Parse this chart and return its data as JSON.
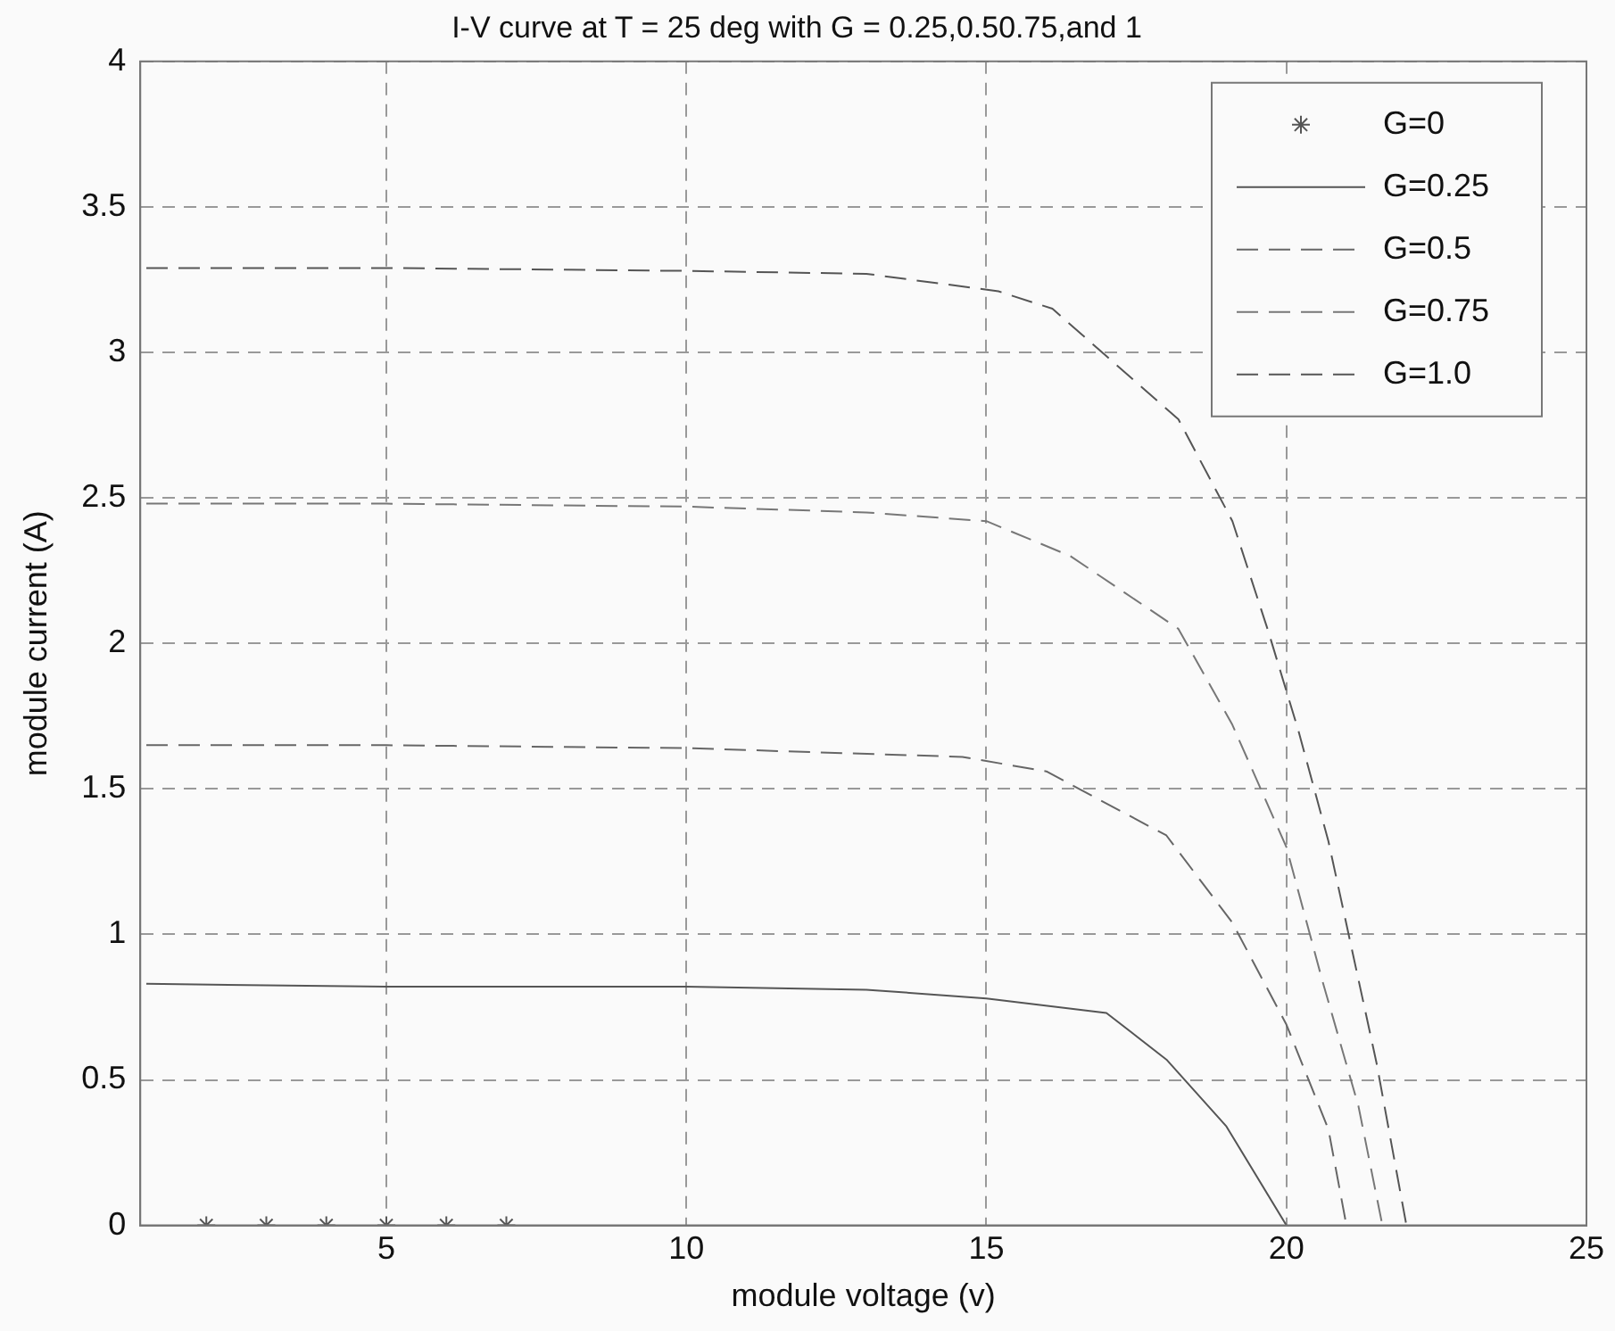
{
  "chart_data": {
    "type": "line",
    "title": "I-V curve at T = 25 deg with G = 0.25,0.50.75,and 1",
    "xlabel": "module voltage (v)",
    "ylabel": "module current (A)",
    "xlim": [
      0.9,
      25
    ],
    "xticks": [
      5,
      10,
      15,
      20,
      25
    ],
    "ylim": [
      0,
      4
    ],
    "yticks": [
      0,
      0.5,
      1,
      1.5,
      2,
      2.5,
      3,
      3.5,
      4
    ],
    "grid": true,
    "legend": "top right",
    "series": [
      {
        "name": "G=0",
        "type": "scatter",
        "marker": "cross",
        "color": "#555555",
        "x": [
          2,
          3,
          4,
          5,
          6,
          7
        ],
        "values": [
          0,
          0,
          0,
          0,
          0,
          0
        ]
      },
      {
        "name": "G=0.25",
        "marker": "none",
        "line_style": "solid",
        "color": "#555555",
        "x": [
          1,
          5,
          10,
          13,
          15,
          17,
          18,
          19,
          20
        ],
        "values": [
          0.83,
          0.82,
          0.82,
          0.81,
          0.78,
          0.73,
          0.57,
          0.34,
          0
        ]
      },
      {
        "name": "G=0.5",
        "marker": "none",
        "line_style": "dashed",
        "color": "#666666",
        "x": [
          1,
          5,
          10,
          14.6,
          16,
          18,
          19.1,
          20,
          20.7,
          21
        ],
        "values": [
          1.65,
          1.65,
          1.64,
          1.61,
          1.56,
          1.34,
          1.04,
          0.69,
          0.33,
          0
        ]
      },
      {
        "name": "G=0.75",
        "marker": "none",
        "line_style": "dashed",
        "color": "#777777",
        "x": [
          1,
          5,
          10,
          13,
          15,
          16.4,
          18.2,
          19.1,
          20,
          20.6,
          21.2,
          21.6
        ],
        "values": [
          2.48,
          2.48,
          2.47,
          2.45,
          2.42,
          2.3,
          2.05,
          1.72,
          1.3,
          0.84,
          0.41,
          0
        ]
      },
      {
        "name": "G=1.0",
        "marker": "none",
        "line_style": "dashed",
        "color": "#555555",
        "x": [
          1,
          5,
          10,
          13,
          15.2,
          16.1,
          18.2,
          19.1,
          19.7,
          20.2,
          20.7,
          21.1,
          21.5,
          22
        ],
        "values": [
          3.29,
          3.29,
          3.28,
          3.27,
          3.21,
          3.15,
          2.77,
          2.42,
          2.04,
          1.7,
          1.32,
          0.94,
          0.56,
          0
        ]
      }
    ]
  }
}
